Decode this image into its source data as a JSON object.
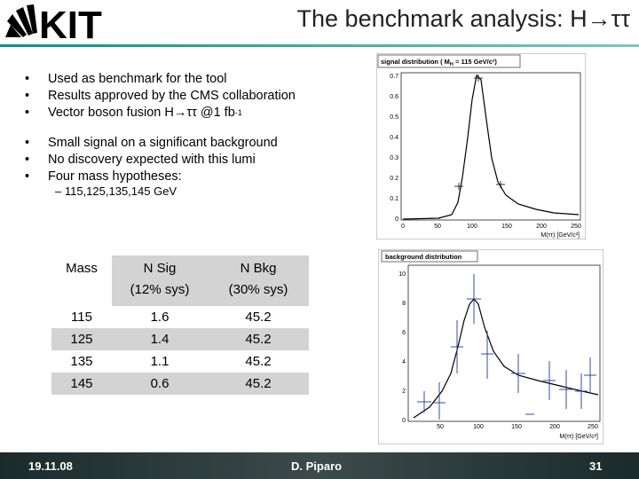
{
  "logo": {
    "text": "KIT"
  },
  "slide": {
    "title": "The benchmark analysis: H→ττ"
  },
  "bullets_group1": [
    "Used as benchmark for the tool",
    "Results approved by the CMS collaboration",
    "Vector boson fusion H→ττ @1 fb"
  ],
  "fb_exponent": "-1",
  "bullets_group2": [
    "Small signal on a significant background",
    "No discovery expected with this lumi",
    "Four mass hypotheses:"
  ],
  "sub_bullet": "– 115,125,135,145 GeV",
  "table": {
    "header": [
      "Mass",
      "N Sig",
      "(12% sys)",
      "N Bkg",
      "(30% sys)"
    ],
    "rows": [
      [
        "115",
        "1.6",
        "45.2"
      ],
      [
        "125",
        "1.4",
        "45.2"
      ],
      [
        "135",
        "1.1",
        "45.2"
      ],
      [
        "145",
        "0.6",
        "45.2"
      ]
    ]
  },
  "signal_plot": {
    "title": "signal distribution ( M",
    "title_sub": "H",
    "title_end": " = 115 GeV/c²)",
    "xlabel": "M(ττ) [GeV/c²]",
    "yticks": [
      "0.7",
      "0.6",
      "0.5",
      "0.4",
      "0.3",
      "0.2",
      "0.1",
      "0"
    ],
    "xticks": [
      "0",
      "50",
      "100",
      "150",
      "200",
      "250"
    ]
  },
  "background_plot": {
    "title": "background distribution",
    "xlabel": "M(ττ) [GeV/c²]",
    "yticks": [
      "10",
      "8",
      "6",
      "4",
      "2",
      "0"
    ],
    "xticks": [
      "50",
      "100",
      "150",
      "200",
      "250"
    ]
  },
  "footer": {
    "date": "19.11.08",
    "author": "D. Piparo",
    "page": "31"
  }
}
